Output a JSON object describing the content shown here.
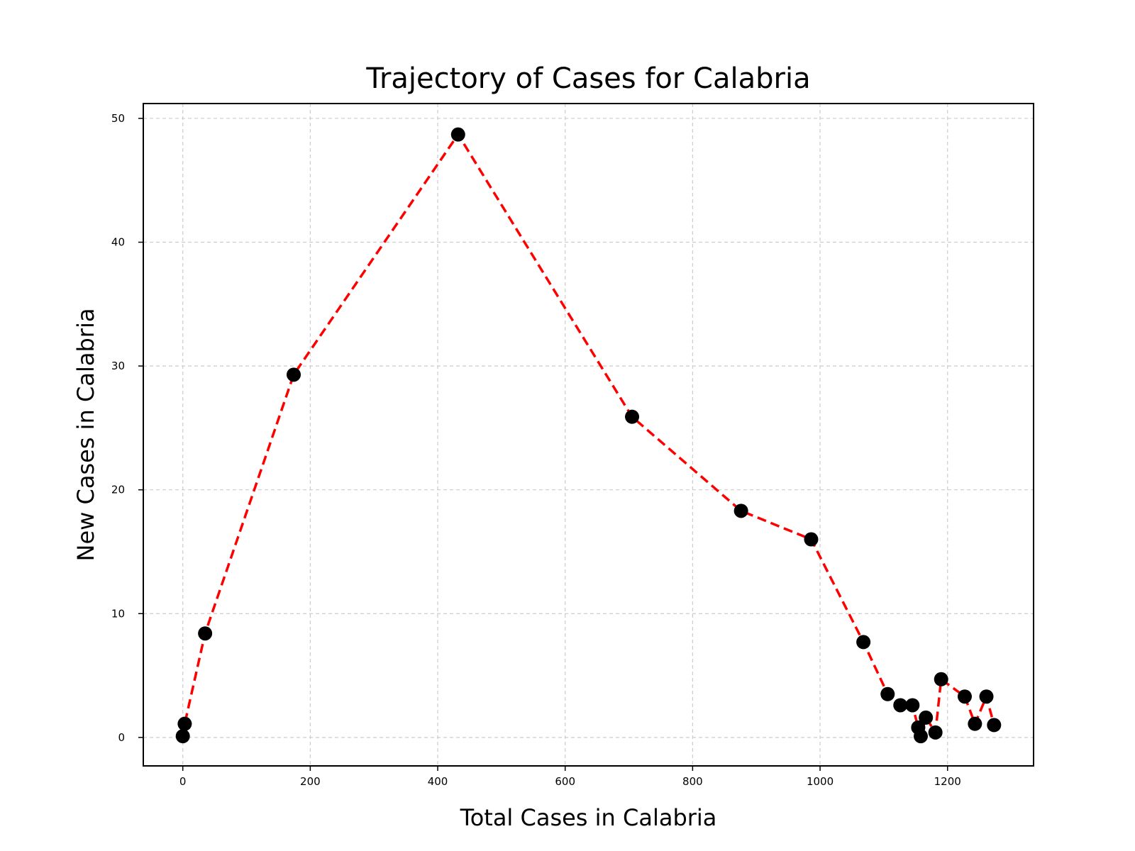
{
  "chart_data": {
    "type": "line",
    "title": "Trajectory of Cases for Calabria",
    "xlabel": "Total Cases in Calabria",
    "ylabel": "New Cases in Calabria",
    "xlim": [
      -62,
      1335
    ],
    "ylim": [
      -2.3,
      51.2
    ],
    "xticks": [
      0,
      200,
      400,
      600,
      800,
      1000,
      1200
    ],
    "yticks": [
      0,
      10,
      20,
      30,
      40,
      50
    ],
    "grid": true,
    "line_style": "dashed",
    "colors": {
      "line": "#ff0000",
      "marker": "#000000",
      "grid": "#cccccc"
    },
    "series": [
      {
        "x": [
          0,
          3,
          35,
          174,
          432,
          705,
          876,
          986,
          1068,
          1106,
          1126,
          1145,
          1154,
          1158,
          1166,
          1181,
          1190,
          1227,
          1243,
          1261,
          1273
        ],
        "y": [
          0.1,
          1.1,
          8.4,
          29.3,
          48.7,
          25.9,
          18.3,
          16.0,
          7.7,
          3.5,
          2.6,
          2.6,
          0.8,
          0.1,
          1.6,
          0.4,
          4.7,
          3.3,
          1.1,
          3.3,
          1.0
        ]
      }
    ]
  }
}
